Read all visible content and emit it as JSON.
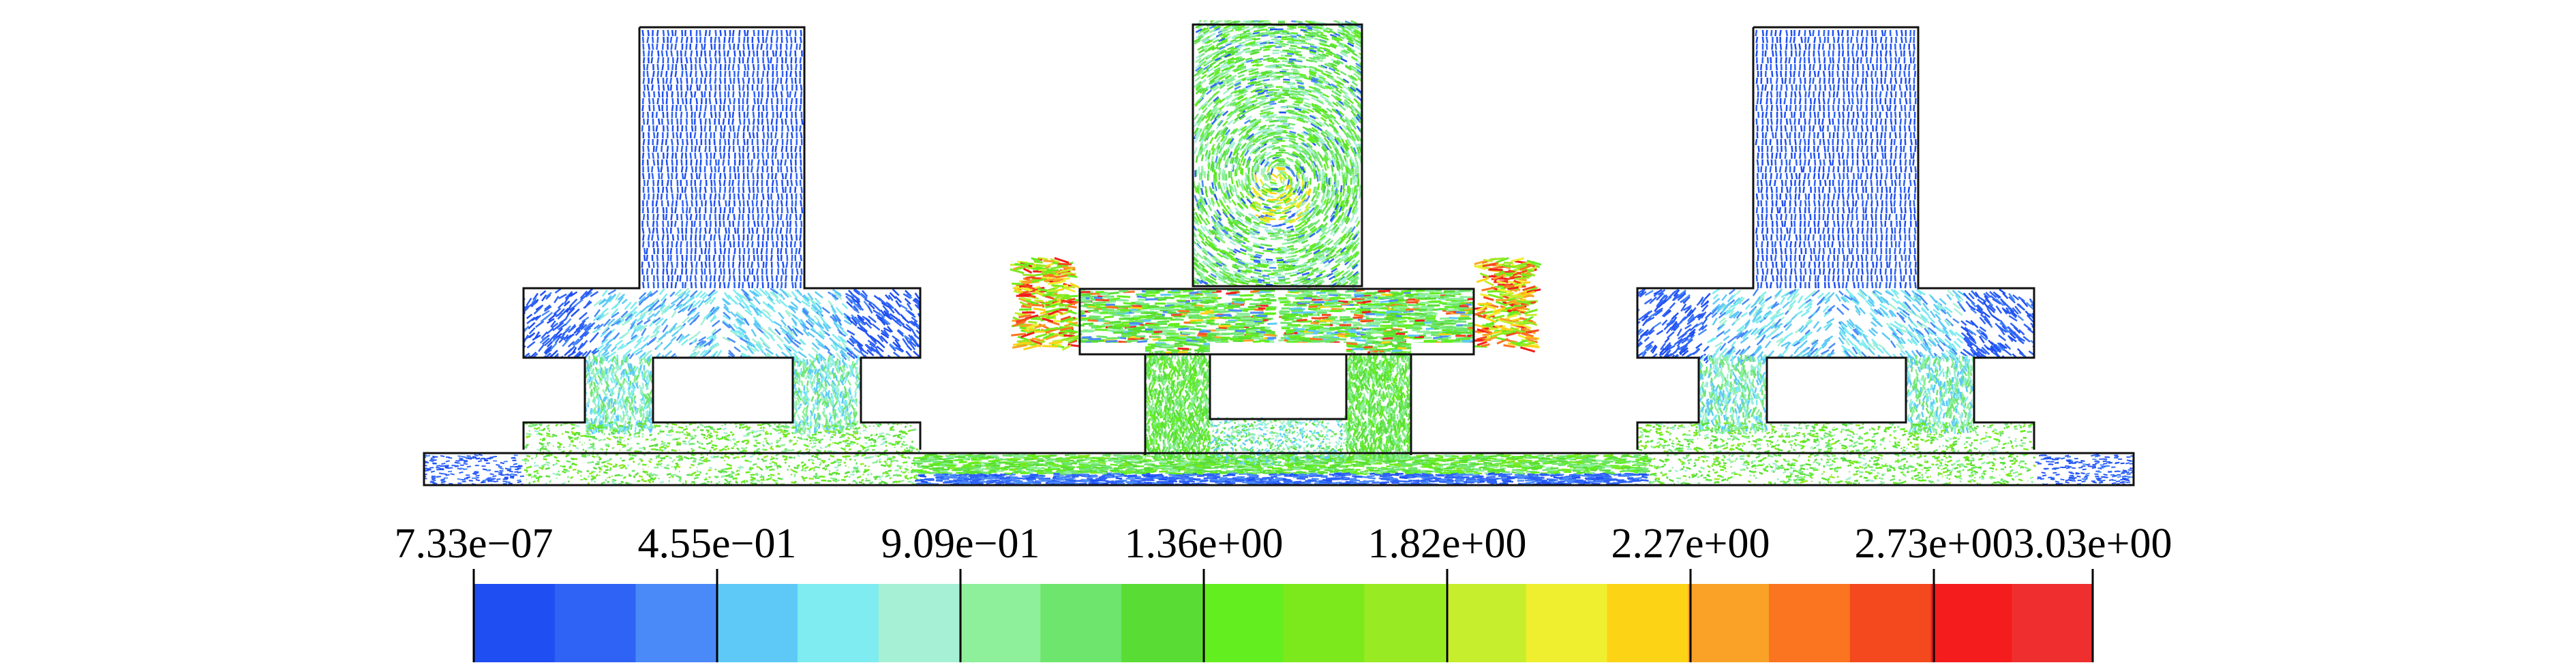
{
  "figure": {
    "type": "velocity-vector-field",
    "colormap_palette": [
      "#1f4ff2",
      "#2f63f6",
      "#4a8af8",
      "#5ec9f6",
      "#7eecf0",
      "#a6f0d6",
      "#8ef09b",
      "#6ee56d",
      "#59dd35",
      "#63ee1f",
      "#7ce91d",
      "#98ea23",
      "#c6ee2d",
      "#efef2f",
      "#fdd316",
      "#f9a227",
      "#fb7420",
      "#f4491f",
      "#f41c1c",
      "#ef2f2f"
    ]
  },
  "colorbar": {
    "tick_labels": [
      "7.33e−07",
      "4.55e−01",
      "9.09e−01",
      "1.36e+00",
      "1.82e+00",
      "2.27e+00",
      "2.73e+00",
      "3.03e+00"
    ],
    "range": [
      7.33e-07,
      3.03
    ]
  }
}
